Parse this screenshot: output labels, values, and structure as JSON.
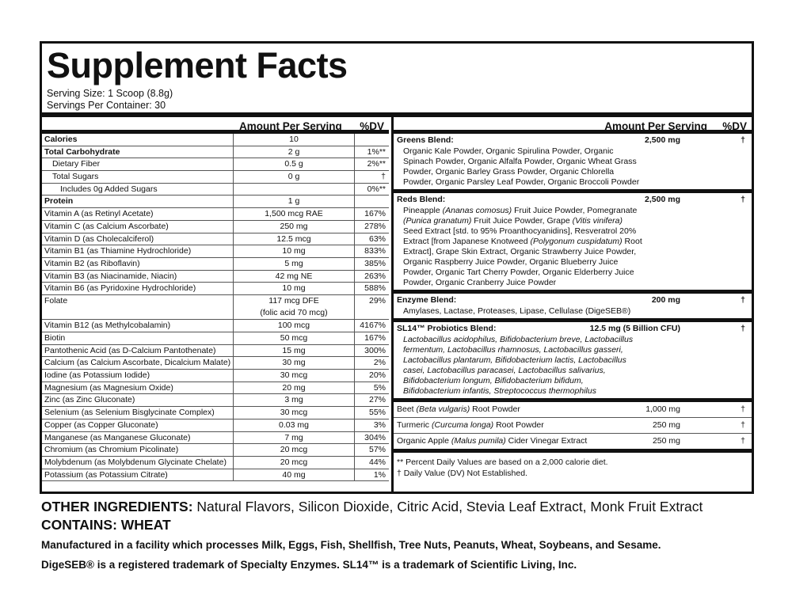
{
  "title": "Supplement Facts",
  "serving_size": "Serving Size: 1 Scoop (8.8g)",
  "servings_per_container": "Servings Per Container: 30",
  "header": {
    "amount": "Amount Per Serving",
    "dv": "%DV"
  },
  "left_rows": [
    {
      "name": "Calories",
      "amount": "10",
      "dv": "",
      "bold": true,
      "indent": 0
    },
    {
      "name": "Total Carbohydrate",
      "amount": "2 g",
      "dv": "1%**",
      "bold": true,
      "indent": 0
    },
    {
      "name": "Dietary Fiber",
      "amount": "0.5 g",
      "dv": "2%**",
      "indent": 1
    },
    {
      "name": "Total Sugars",
      "amount": "0 g",
      "dv": "†",
      "indent": 1
    },
    {
      "name": "Includes 0g Added Sugars",
      "amount": "",
      "dv": "0%**",
      "indent": 2
    },
    {
      "name": "Protein",
      "amount": "1 g",
      "dv": "",
      "bold": true,
      "indent": 0
    },
    {
      "name": "Vitamin A (as Retinyl Acetate)",
      "amount": "1,500 mcg RAE",
      "dv": "167%"
    },
    {
      "name": "Vitamin C (as Calcium Ascorbate)",
      "amount": "250 mg",
      "dv": "278%"
    },
    {
      "name": "Vitamin D (as Cholecalciferol)",
      "amount": "12.5 mcg",
      "dv": "63%"
    },
    {
      "name": "Vitamin B1 (as Thiamine Hydrochloride)",
      "amount": "10 mg",
      "dv": "833%"
    },
    {
      "name": "Vitamin B2 (as Riboflavin)",
      "amount": "5 mg",
      "dv": "385%"
    },
    {
      "name": "Vitamin B3 (as Niacinamide, Niacin)",
      "amount": "42 mg NE",
      "dv": "263%"
    },
    {
      "name": "Vitamin B6 (as Pyridoxine Hydrochloride)",
      "amount": "10 mg",
      "dv": "588%"
    },
    {
      "name": "Folate",
      "amount": "117 mcg DFE",
      "amount2": "(folic acid 70 mcg)",
      "dv": "29%"
    },
    {
      "name": "Vitamin B12 (as Methylcobalamin)",
      "amount": "100 mcg",
      "dv": "4167%"
    },
    {
      "name": "Biotin",
      "amount": "50 mcg",
      "dv": "167%"
    },
    {
      "name": "Pantothenic Acid (as D-Calcium Pantothenate)",
      "amount": "15 mg",
      "dv": "300%"
    },
    {
      "name": "Calcium (as Calcium Ascorbate, Dicalcium Malate)",
      "amount": "30 mg",
      "dv": "2%"
    },
    {
      "name": "Iodine (as Potassium Iodide)",
      "amount": "30 mcg",
      "dv": "20%"
    },
    {
      "name": "Magnesium (as Magnesium Oxide)",
      "amount": "20 mg",
      "dv": "5%"
    },
    {
      "name": "Zinc (as Zinc Gluconate)",
      "amount": "3 mg",
      "dv": "27%"
    },
    {
      "name": "Selenium (as Selenium Bisglycinate Complex)",
      "amount": "30 mcg",
      "dv": "55%"
    },
    {
      "name": "Copper (as Copper Gluconate)",
      "amount": "0.03 mg",
      "dv": "3%"
    },
    {
      "name": "Manganese (as Manganese Gluconate)",
      "amount": "7 mg",
      "dv": "304%"
    },
    {
      "name": "Chromium (as Chromium Picolinate)",
      "amount": "20 mcg",
      "dv": "57%"
    },
    {
      "name": "Molybdenum (as Molybdenum Glycinate Chelate)",
      "amount": "20 mcg",
      "dv": "44%"
    },
    {
      "name": "Potassium (as Potassium Citrate)",
      "amount": "40 mg",
      "dv": "1%"
    }
  ],
  "blends": [
    {
      "name": "Greens Blend:",
      "amount": "2,500 mg",
      "dv": "†",
      "text": [
        {
          "t": "Organic Kale Powder, Organic Spirulina Powder, Organic Spinach Powder, Organic Alfalfa Powder, Organic Wheat Grass Powder, Organic Barley Grass Powder, Organic Chlorella Powder, Organic Parsley Leaf Powder, Organic Broccoli Powder"
        }
      ]
    },
    {
      "name": "Reds Blend:",
      "amount": "2,500 mg",
      "dv": "†",
      "text": [
        {
          "t": "Pineapple "
        },
        {
          "t": "(Ananas comosus)",
          "i": true
        },
        {
          "t": " Fruit Juice Powder, Pomegranate "
        },
        {
          "t": "(Punica granatum)",
          "i": true
        },
        {
          "t": " Fruit Juice Powder, Grape "
        },
        {
          "t": "(Vitis vinifera)",
          "i": true
        },
        {
          "t": " Seed Extract [std. to 95% Proanthocyanidins], Resveratrol 20% Extract [from Japanese Knotweed "
        },
        {
          "t": "(Polygonum cuspidatum)",
          "i": true
        },
        {
          "t": " Root Extract], Grape Skin Extract, Organic Strawberry Juice Powder, Organic Raspberry Juice Powder, Organic Blueberry Juice Powder, Organic Tart Cherry Powder, Organic Elderberry Juice Powder, Organic Cranberry Juice Powder"
        }
      ]
    },
    {
      "name": "Enzyme Blend:",
      "amount": "200 mg",
      "dv": "†",
      "text": [
        {
          "t": "Amylases, Lactase, Proteases, Lipase, Cellulase (DigeSEB®)"
        }
      ]
    },
    {
      "name": "SL14™ Probiotics Blend:",
      "amount": "12.5 mg (5 Billion CFU)",
      "dv": "†",
      "text": [
        {
          "t": "Lactobacillus acidophilus, Bifidobacterium breve, Lactobacillus fermentum, Lactobacillus rhamnosus, Lactobacillus gasseri, Lactobacillus plantarum, Bifidobacterium lactis, Lactobacillus casei, Lactobacillus paracasei, Lactobacillus salivarius, Bifidobacterium longum, Bifidobacterium bifidum, Bifidobacterium infantis, Streptococcus thermophilus",
          "i": true
        }
      ]
    }
  ],
  "singles": [
    {
      "name": [
        {
          "t": "Beet "
        },
        {
          "t": "(Beta vulgaris)",
          "i": true
        },
        {
          "t": " Root Powder"
        }
      ],
      "amount": "1,000 mg",
      "dv": "†"
    },
    {
      "name": [
        {
          "t": "Turmeric "
        },
        {
          "t": "(Curcuma longa)",
          "i": true
        },
        {
          "t": " Root Powder"
        }
      ],
      "amount": "250 mg",
      "dv": "†"
    },
    {
      "name": [
        {
          "t": "Organic Apple "
        },
        {
          "t": "(Malus pumila)",
          "i": true
        },
        {
          "t": " Cider Vinegar Extract"
        }
      ],
      "amount": "250 mg",
      "dv": "†"
    }
  ],
  "footnotes": [
    "** Percent Daily Values are based on a 2,000 calorie diet.",
    "† Daily Value (DV) Not Established."
  ],
  "other_ingredients": {
    "label": "OTHER INGREDIENTS:",
    "text": " Natural Flavors, Silicon Dioxide, Citric Acid, Stevia Leaf Extract, Monk Fruit Extract"
  },
  "contains": "CONTAINS: WHEAT",
  "allergen": "Manufactured in a facility which processes Milk, Eggs, Fish, Shellfish, Tree Nuts, Peanuts, Wheat, Soybeans, and Sesame.",
  "trademark": "DigeSEB® is a registered trademark of Specialty Enzymes. SL14™ is a trademark of Scientific Living, Inc."
}
